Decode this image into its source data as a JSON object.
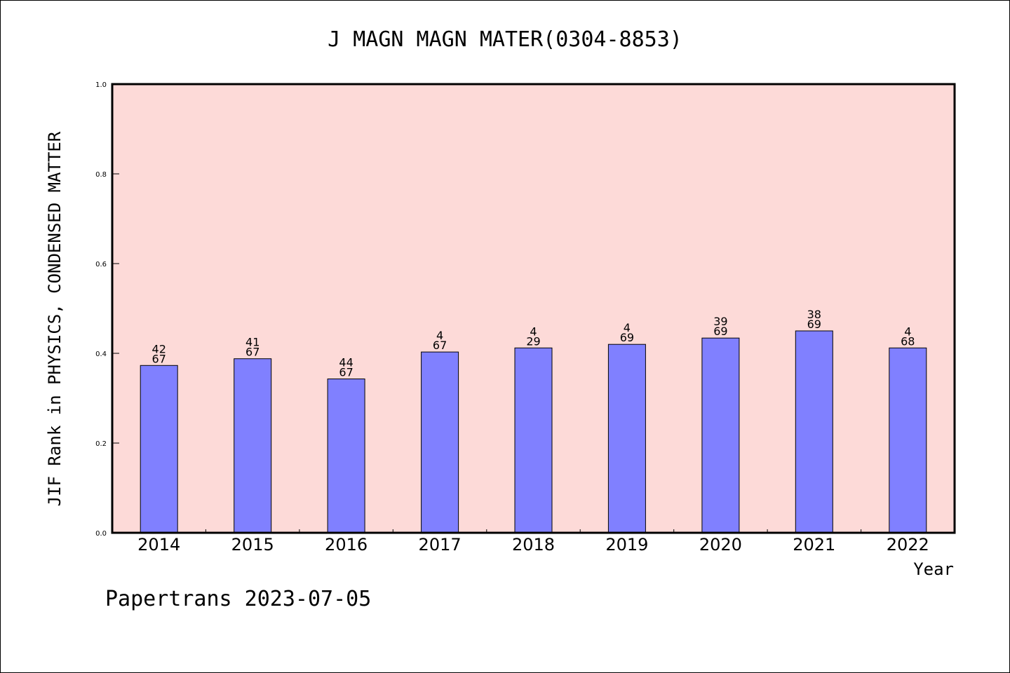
{
  "chart_data": {
    "type": "bar",
    "title": "J MAGN MAGN MATER(0304-8853)",
    "xlabel": "Year",
    "ylabel": "JIF Rank in PHYSICS, CONDENSED MATTER",
    "ylim": [
      0,
      1.0
    ],
    "yticks": [
      "0.0",
      "0.2",
      "0.4",
      "0.6",
      "0.8",
      "1.0"
    ],
    "grid": false,
    "legend": "none",
    "categories": [
      "2014",
      "2015",
      "2016",
      "2017",
      "2018",
      "2019",
      "2020",
      "2021",
      "2022"
    ],
    "values": [
      0.373,
      0.388,
      0.343,
      0.403,
      0.412,
      0.42,
      0.434,
      0.45,
      0.412
    ],
    "data_labels": [
      [
        "42",
        "67"
      ],
      [
        "41",
        "67"
      ],
      [
        "44",
        "67"
      ],
      [
        "4",
        "67"
      ],
      [
        "4",
        "29"
      ],
      [
        "4",
        "69"
      ],
      [
        "39",
        "69"
      ],
      [
        "38",
        "69"
      ],
      [
        "4",
        "68"
      ]
    ],
    "colors": {
      "plot_background": "#fddad8",
      "bar_fill": "#8080ff",
      "bar_stroke": "#000000"
    }
  },
  "footer": "Papertrans 2023-07-05"
}
